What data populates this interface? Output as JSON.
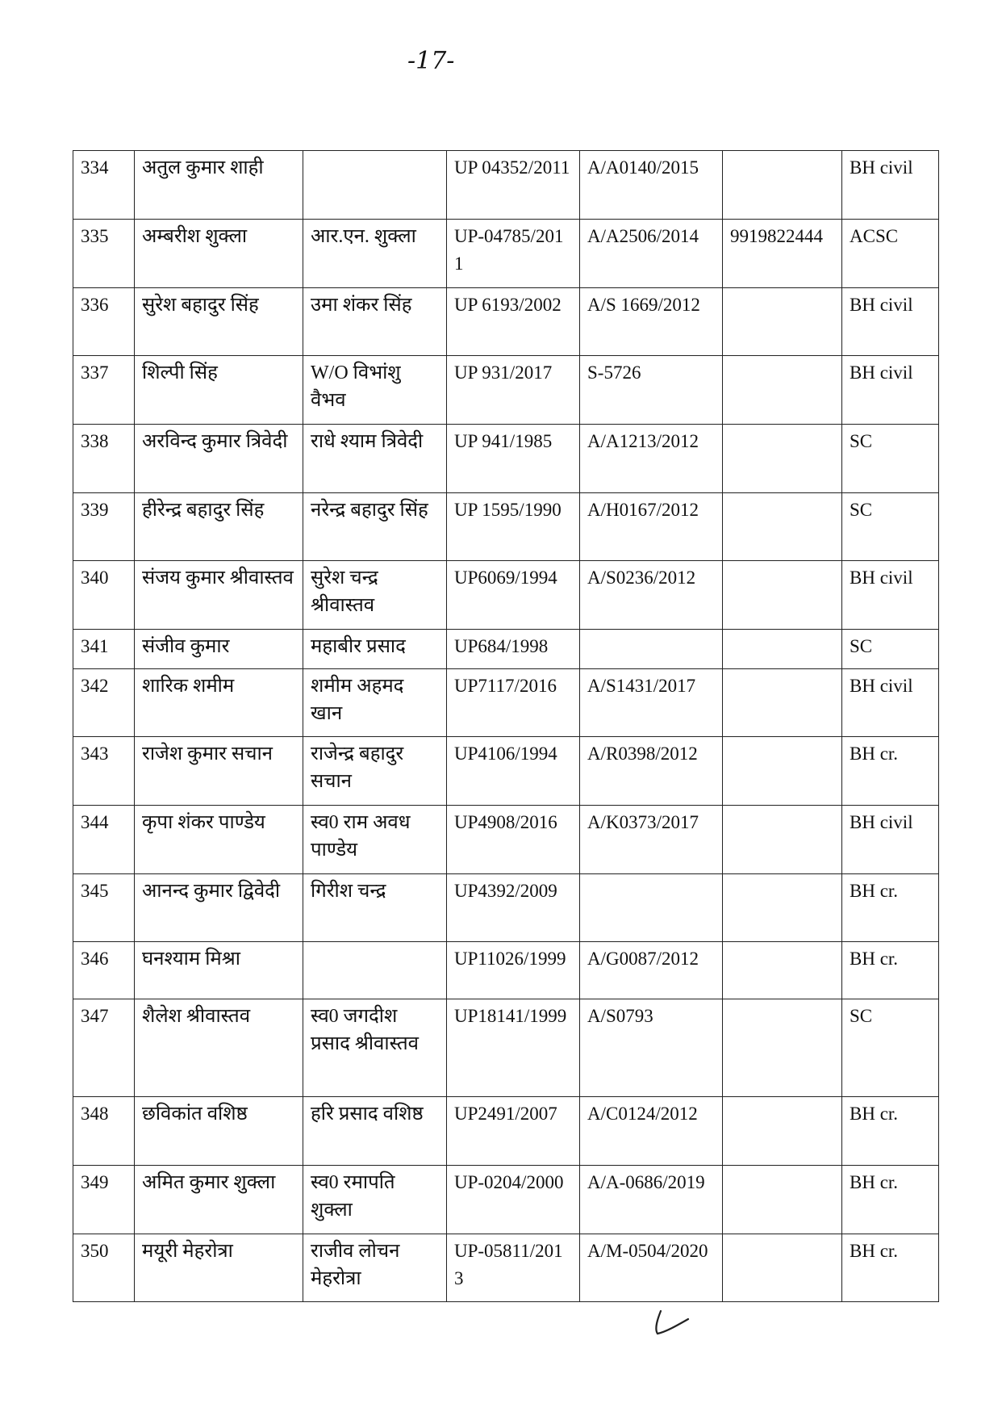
{
  "page_number": "-17-",
  "rows": [
    {
      "sno": "334",
      "name": "अतुल कुमार शाही",
      "father": "",
      "enroll": "UP 04352/2011",
      "reg": "A/A0140/2015",
      "mobile": "",
      "court": "BH civil"
    },
    {
      "sno": "335",
      "name": "अम्बरीश शुक्ला",
      "father": "आर.एन. शुक्ला",
      "enroll": "UP-04785/2011",
      "reg": "A/A2506/2014",
      "mobile": "9919822444",
      "court": "ACSC"
    },
    {
      "sno": "336",
      "name": "सुरेश बहादुर सिंह",
      "father": "उमा शंकर सिंह",
      "enroll": "UP 6193/2002",
      "reg": "A/S 1669/2012",
      "mobile": "",
      "court": "BH civil"
    },
    {
      "sno": "337",
      "name": "शिल्पी सिंह",
      "father": "W/O विभांशु वैभव",
      "enroll": "UP 931/2017",
      "reg": "S-5726",
      "mobile": "",
      "court": "BH civil"
    },
    {
      "sno": "338",
      "name": "अरविन्द कुमार त्रिवेदी",
      "father": "राधे श्याम त्रिवेदी",
      "enroll": "UP 941/1985",
      "reg": "A/A1213/2012",
      "mobile": "",
      "court": "SC"
    },
    {
      "sno": "339",
      "name": "हीरेन्द्र बहादुर सिंह",
      "father": "नरेन्द्र बहादुर सिंह",
      "enroll": "UP 1595/1990",
      "reg": "A/H0167/2012",
      "mobile": "",
      "court": "SC"
    },
    {
      "sno": "340",
      "name": "संजय कुमार श्रीवास्तव",
      "father": "सुरेश चन्द्र श्रीवास्तव",
      "enroll": "UP6069/1994",
      "reg": "A/S0236/2012",
      "mobile": "",
      "court": "BH civil"
    },
    {
      "sno": "341",
      "name": "संजीव कुमार",
      "father": "महाबीर प्रसाद",
      "enroll": "UP684/1998",
      "reg": "",
      "mobile": "",
      "court": "SC"
    },
    {
      "sno": "342",
      "name": "शारिक शमीम",
      "father": "शमीम अहमद खान",
      "enroll": "UP7117/2016",
      "reg": "A/S1431/2017",
      "mobile": "",
      "court": "BH civil"
    },
    {
      "sno": "343",
      "name": "राजेश कुमार सचान",
      "father": "राजेन्द्र बहादुर सचान",
      "enroll": "UP4106/1994",
      "reg": "A/R0398/2012",
      "mobile": "",
      "court": "BH cr."
    },
    {
      "sno": "344",
      "name": "कृपा शंकर पाण्डेय",
      "father": "स्व0 राम अवध पाण्डेय",
      "enroll": "UP4908/2016",
      "reg": "A/K0373/2017",
      "mobile": "",
      "court": "BH civil"
    },
    {
      "sno": "345",
      "name": "आनन्द कुमार द्विवेदी",
      "father": "गिरीश चन्द्र",
      "enroll": "UP4392/2009",
      "reg": "",
      "mobile": "",
      "court": "BH cr."
    },
    {
      "sno": "346",
      "name": "घनश्याम मिश्रा",
      "father": "",
      "enroll": "UP11026/1999",
      "reg": "A/G0087/2012",
      "mobile": "",
      "court": "BH cr."
    },
    {
      "sno": "347",
      "name": "शैलेश श्रीवास्तव",
      "father": "स्व0 जगदीश प्रसाद श्रीवास्तव",
      "enroll": "UP18141/1999",
      "reg": "A/S0793",
      "mobile": "",
      "court": "SC"
    },
    {
      "sno": "348",
      "name": "छविकांत वशिष्ठ",
      "father": "हरि प्रसाद वशिष्ठ",
      "enroll": "UP2491/2007",
      "reg": "A/C0124/2012",
      "mobile": "",
      "court": "BH cr."
    },
    {
      "sno": "349",
      "name": "अमित कुमार शुक्ला",
      "father": "स्व0 रमापति शुक्ला",
      "enroll": "UP-0204/2000",
      "reg": "A/A-0686/2019",
      "mobile": "",
      "court": "BH cr."
    },
    {
      "sno": "350",
      "name": "मयूरी मेहरोत्रा",
      "father": "राजीव लोचन मेहरोत्रा",
      "enroll": "UP-05811/2013",
      "reg": "A/M-0504/2020",
      "mobile": "",
      "court": "BH cr."
    }
  ]
}
